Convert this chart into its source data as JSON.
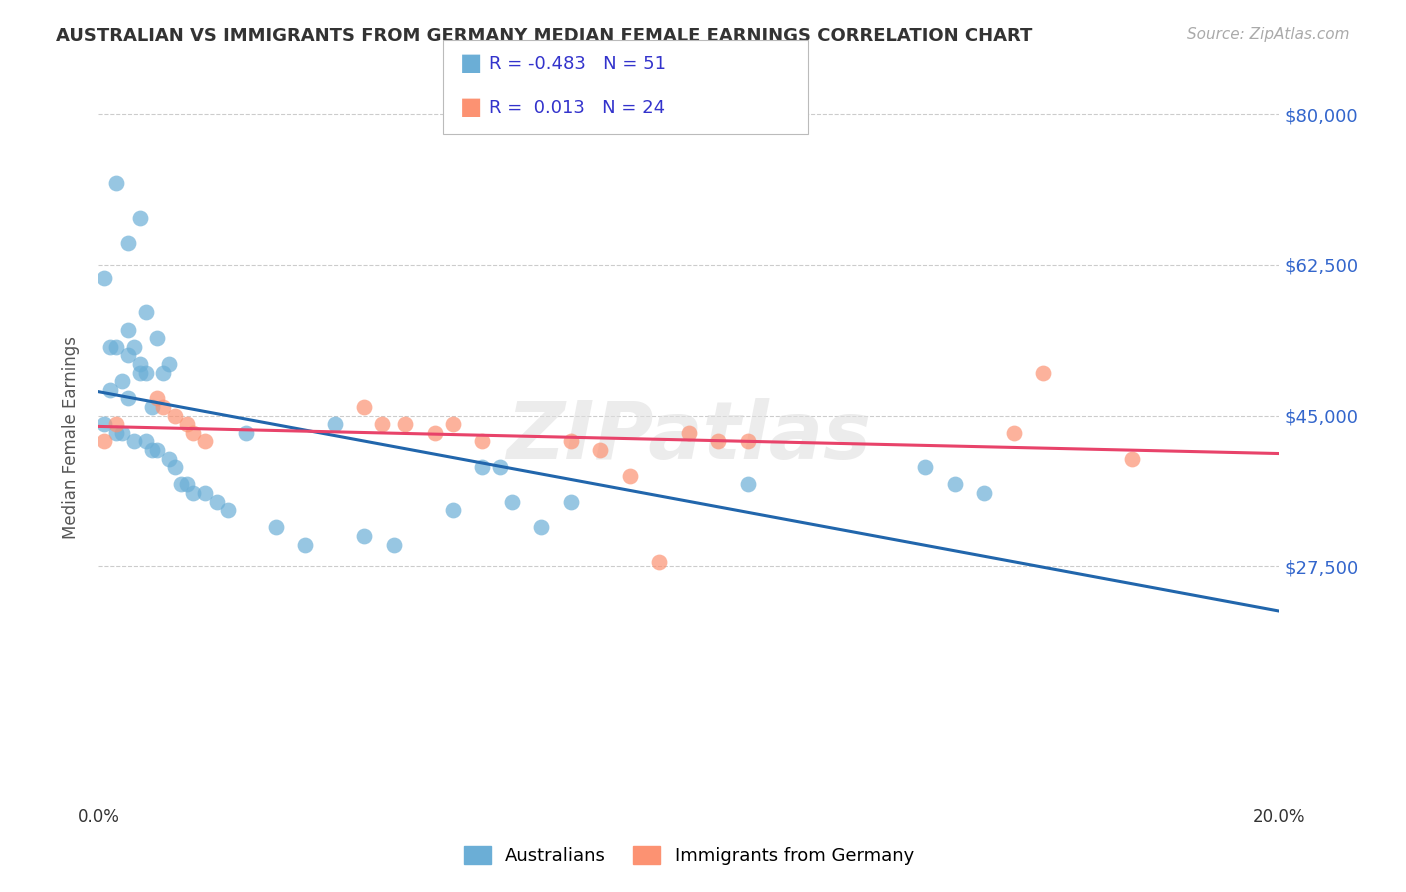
{
  "title": "AUSTRALIAN VS IMMIGRANTS FROM GERMANY MEDIAN FEMALE EARNINGS CORRELATION CHART",
  "source": "Source: ZipAtlas.com",
  "ylabel": "Median Female Earnings",
  "xlim": [
    0.0,
    0.2
  ],
  "ylim": [
    0,
    85000
  ],
  "background_color": "#ffffff",
  "grid_color": "#cccccc",
  "blue_color": "#6baed6",
  "pink_color": "#fc9272",
  "blue_line_color": "#2166ac",
  "pink_line_color": "#e8436a",
  "legend_text_color": "#3333cc",
  "aus_x": [
    0.003,
    0.007,
    0.001,
    0.005,
    0.005,
    0.008,
    0.002,
    0.003,
    0.005,
    0.006,
    0.007,
    0.008,
    0.002,
    0.004,
    0.005,
    0.007,
    0.009,
    0.01,
    0.011,
    0.012,
    0.001,
    0.003,
    0.004,
    0.006,
    0.008,
    0.009,
    0.01,
    0.012,
    0.013,
    0.014,
    0.015,
    0.016,
    0.018,
    0.02,
    0.022,
    0.025,
    0.03,
    0.035,
    0.04,
    0.045,
    0.05,
    0.06,
    0.065,
    0.07,
    0.075,
    0.11,
    0.14,
    0.145,
    0.15,
    0.068,
    0.08
  ],
  "aus_y": [
    72000,
    68000,
    61000,
    65000,
    55000,
    57000,
    53000,
    53000,
    52000,
    53000,
    51000,
    50000,
    48000,
    49000,
    47000,
    50000,
    46000,
    54000,
    50000,
    51000,
    44000,
    43000,
    43000,
    42000,
    42000,
    41000,
    41000,
    40000,
    39000,
    37000,
    37000,
    36000,
    36000,
    35000,
    34000,
    43000,
    32000,
    30000,
    44000,
    31000,
    30000,
    34000,
    39000,
    35000,
    32000,
    37000,
    39000,
    37000,
    36000,
    39000,
    35000
  ],
  "ger_x": [
    0.001,
    0.003,
    0.01,
    0.011,
    0.013,
    0.015,
    0.016,
    0.018,
    0.045,
    0.048,
    0.052,
    0.057,
    0.06,
    0.065,
    0.08,
    0.085,
    0.09,
    0.095,
    0.1,
    0.105,
    0.11,
    0.155,
    0.16,
    0.175
  ],
  "ger_y": [
    42000,
    44000,
    47000,
    46000,
    45000,
    44000,
    43000,
    42000,
    46000,
    44000,
    44000,
    43000,
    44000,
    42000,
    42000,
    41000,
    38000,
    28000,
    43000,
    42000,
    42000,
    43000,
    50000,
    40000
  ]
}
